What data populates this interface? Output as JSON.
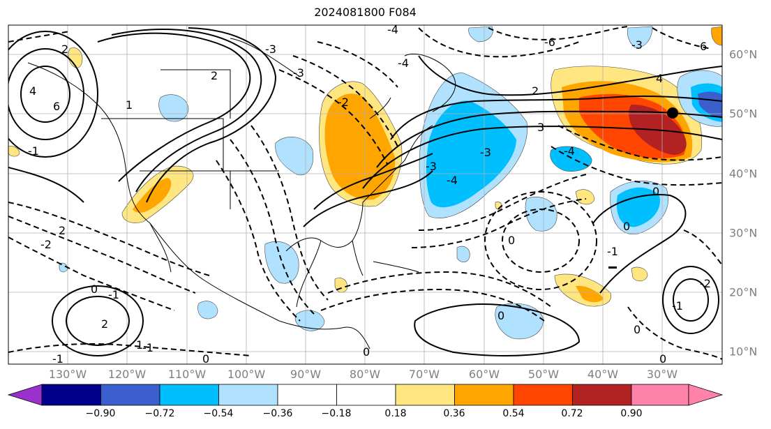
{
  "title": "2024081800 F084",
  "lon_labels": [
    "130°W",
    "120°W",
    "110°W",
    "100°W",
    "90°W",
    "80°W",
    "70°W",
    "60°W",
    "50°W",
    "40°W",
    "30°W"
  ],
  "lat_labels": [
    "60°N",
    "50°N",
    "40°N",
    "30°N",
    "20°N",
    "10°N"
  ],
  "colorbar": {
    "ticks": [
      "−0.90",
      "−0.72",
      "−0.54",
      "−0.36",
      "−0.18",
      "0.18",
      "0.36",
      "0.54",
      "0.72",
      "0.90"
    ],
    "colors": [
      "#9932cc",
      "#00008b",
      "#3a5fcd",
      "#00bfff",
      "#b0e2ff",
      "#ffffff",
      "#ffe680",
      "#ffa500",
      "#ff4500",
      "#b22222",
      "#ff82ab"
    ]
  },
  "contour_labels": [
    "2",
    "4",
    "6",
    "2",
    "1",
    "-1",
    "2",
    "-2",
    "-3",
    "-4",
    "-3",
    "-4",
    "-6",
    "4",
    "2",
    "3",
    "-3",
    "-4",
    "-3",
    "0",
    "0",
    "0",
    "-1",
    "1",
    "2",
    "0",
    "-1",
    "0",
    "-2",
    "-1",
    "-1",
    "0",
    "-4",
    "-3",
    "-2",
    "6",
    "0",
    "0",
    "0",
    "-1"
  ]
}
